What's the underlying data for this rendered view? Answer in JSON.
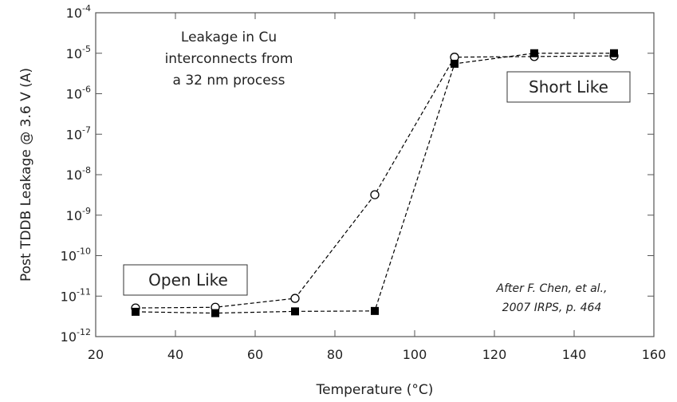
{
  "chart_data": {
    "type": "line",
    "ylabel": "Post TDDB Leakage @ 3.6 V (A)",
    "xlabel": "Temperature (°C)",
    "log_y": true,
    "xlim": [
      20,
      160
    ],
    "xticks": [
      20,
      40,
      60,
      80,
      100,
      120,
      140,
      160
    ],
    "ylim": [
      1e-12,
      0.0001
    ],
    "yticks": [
      {
        "value": 1e-12,
        "label": "10-12"
      },
      {
        "value": 1e-11,
        "label": "10-11"
      },
      {
        "value": 1e-10,
        "label": "10-10"
      },
      {
        "value": 1e-09,
        "label": "10-9"
      },
      {
        "value": 1e-08,
        "label": "10-8"
      },
      {
        "value": 1e-07,
        "label": "10-7"
      },
      {
        "value": 1e-06,
        "label": "10-6"
      },
      {
        "value": 1e-05,
        "label": "10-5"
      },
      {
        "value": 0.0001,
        "label": "10-4"
      }
    ],
    "series": [
      {
        "color": "#000000",
        "marker": "circle",
        "linestyle": "dashed",
        "x": [
          30,
          50,
          70,
          90,
          110,
          130,
          150
        ],
        "values": [
          5.1e-12,
          5.3e-12,
          8.8e-12,
          3.2e-09,
          8e-06,
          8.3e-06,
          8.6e-06
        ]
      },
      {
        "color": "#000000",
        "marker": "square",
        "linestyle": "dashed",
        "x": [
          30,
          50,
          70,
          90,
          110,
          130,
          150
        ],
        "values": [
          4.1e-12,
          3.8e-12,
          4.2e-12,
          4.3e-12,
          5.5e-06,
          1e-05,
          1e-05
        ]
      }
    ],
    "annotations": {
      "note": [
        "Leakage in Cu",
        "interconnects from",
        "a 32 nm process"
      ],
      "short": "Short Like",
      "open": "Open Like",
      "source": [
        "After F. Chen, et al.,",
        "2007 IRPS, p. 464"
      ]
    }
  }
}
